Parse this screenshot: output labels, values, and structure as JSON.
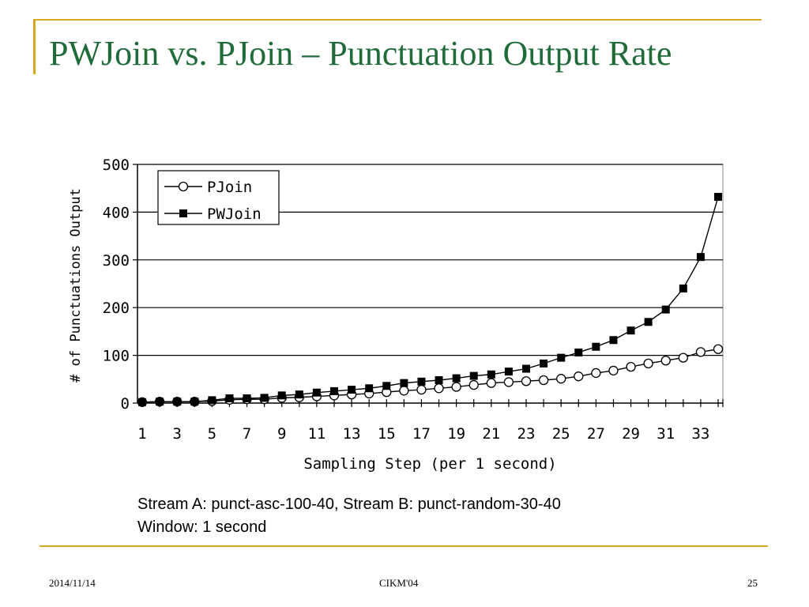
{
  "slide": {
    "title": "PWJoin vs. PJoin – Punctuation Output Rate",
    "caption_line1": "Stream A: punct-asc-100-40, Stream B: punct-random-30-40",
    "caption_line2": "Window: 1 second",
    "footer_date": "2014/11/14",
    "footer_conf": "CIKM'04",
    "footer_page": "25",
    "accent_color": "#d6a91e",
    "title_color": "#1f6b3a"
  },
  "chart_data": {
    "type": "line",
    "title": "",
    "xlabel": "Sampling Step (per 1 second)",
    "ylabel": "# of Punctuations Output",
    "xlim": [
      1,
      34
    ],
    "ylim": [
      0,
      500
    ],
    "yticks": [
      0,
      100,
      200,
      300,
      400,
      500
    ],
    "xtick_labels": [
      "1",
      "3",
      "5",
      "7",
      "9",
      "11",
      "13",
      "15",
      "17",
      "19",
      "21",
      "23",
      "25",
      "27",
      "29",
      "31",
      "33"
    ],
    "grid": "horizontal",
    "legend_position": "top-left",
    "x": [
      1,
      2,
      3,
      4,
      5,
      6,
      7,
      8,
      9,
      10,
      11,
      12,
      13,
      14,
      15,
      16,
      17,
      18,
      19,
      20,
      21,
      22,
      23,
      24,
      25,
      26,
      27,
      28,
      29,
      30,
      31,
      32,
      33,
      34
    ],
    "series": [
      {
        "name": "PJoin",
        "marker": "open-circle",
        "values": [
          2,
          3,
          3,
          3,
          4,
          7,
          8,
          8,
          11,
          12,
          14,
          16,
          18,
          20,
          23,
          26,
          28,
          31,
          34,
          38,
          42,
          44,
          46,
          48,
          51,
          56,
          63,
          68,
          76,
          83,
          89,
          95,
          107,
          113
        ]
      },
      {
        "name": "PWJoin",
        "marker": "filled-square",
        "values": [
          2,
          3,
          3,
          3,
          6,
          10,
          10,
          11,
          16,
          18,
          22,
          25,
          28,
          31,
          36,
          42,
          45,
          48,
          52,
          57,
          60,
          66,
          72,
          83,
          95,
          106,
          118,
          132,
          152,
          170,
          196,
          240,
          306,
          432
        ]
      }
    ]
  }
}
